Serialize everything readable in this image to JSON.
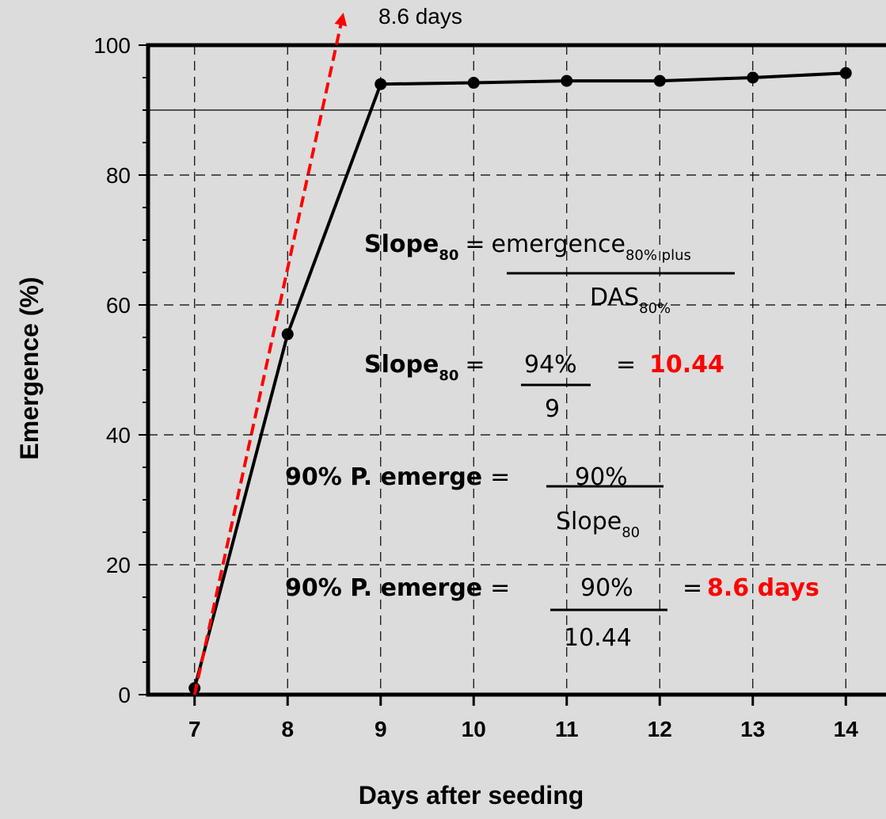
{
  "chart_data": {
    "type": "line",
    "xlabel": "Days after seeding",
    "ylabel": "Emergence (%)",
    "xlim": [
      6.5,
      14.5
    ],
    "ylim": [
      0,
      100
    ],
    "x_ticks": [
      "7",
      "8",
      "9",
      "10",
      "11",
      "12",
      "13",
      "14"
    ],
    "y_ticks": [
      "0",
      "20",
      "40",
      "60",
      "80",
      "100"
    ],
    "grid": true,
    "reference_line_y": 90,
    "series": [
      {
        "x": [
          7,
          8,
          9,
          10,
          11,
          12,
          13,
          14
        ],
        "y": [
          1,
          55.5,
          94,
          94.2,
          94.5,
          94.5,
          95,
          95.7
        ],
        "color": "#000000"
      }
    ],
    "projection": {
      "x": [
        7,
        8.6
      ],
      "y": [
        0,
        105
      ],
      "color": "#ff0000",
      "label": "8.6 days"
    },
    "equations": {
      "eq1_lhs": "Slope",
      "eq1_sub": "80",
      "eq1_eq": "=",
      "eq1_num": "emergence",
      "eq1_num_sub": "80% plus",
      "eq1_den": "DAS",
      "eq1_den_sub": "80%",
      "eq2_lhs": "Slope",
      "eq2_sub": "80",
      "eq2_eq": "=",
      "eq2_num": "94%",
      "eq2_den": "9",
      "eq2_eq2": "=",
      "eq2_result": "10.44",
      "eq3_lhs": "90% P. emerge",
      "eq3_eq": "=",
      "eq3_num": "90%",
      "eq3_den": "Slope",
      "eq3_den_sub": "80",
      "eq4_lhs": "90% P. emerge",
      "eq4_eq": "=",
      "eq4_num": "90%",
      "eq4_den": "10.44",
      "eq4_eq2": "=",
      "eq4_result": "8.6 days"
    }
  }
}
